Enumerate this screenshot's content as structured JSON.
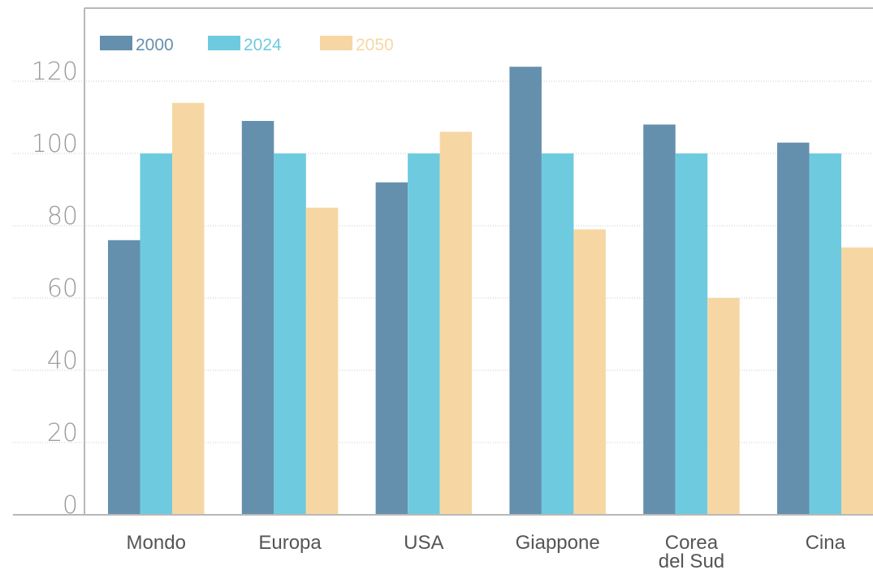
{
  "chart_data": {
    "type": "bar",
    "categories": [
      "Mondo",
      "Europa",
      "USA",
      "Giappone",
      "Corea del Sud",
      "Cina"
    ],
    "category_lines": [
      [
        "Mondo"
      ],
      [
        "Europa"
      ],
      [
        "USA"
      ],
      [
        "Giappone"
      ],
      [
        "Corea",
        "del Sud"
      ],
      [
        "Cina"
      ]
    ],
    "series": [
      {
        "name": "2000",
        "color": "#6490ad",
        "values": [
          76,
          109,
          92,
          124,
          108,
          103
        ]
      },
      {
        "name": "2024",
        "color": "#6ecbdf",
        "values": [
          100,
          100,
          100,
          100,
          100,
          100
        ]
      },
      {
        "name": "2050",
        "color": "#f6d7a3",
        "values": [
          114,
          85,
          106,
          79,
          60,
          74
        ]
      }
    ],
    "yticks": [
      0,
      20,
      40,
      60,
      80,
      100,
      120
    ],
    "ylim": [
      0,
      140
    ],
    "grid": true,
    "legend_position": "top-left",
    "title": "",
    "xlabel": "",
    "ylabel": ""
  }
}
